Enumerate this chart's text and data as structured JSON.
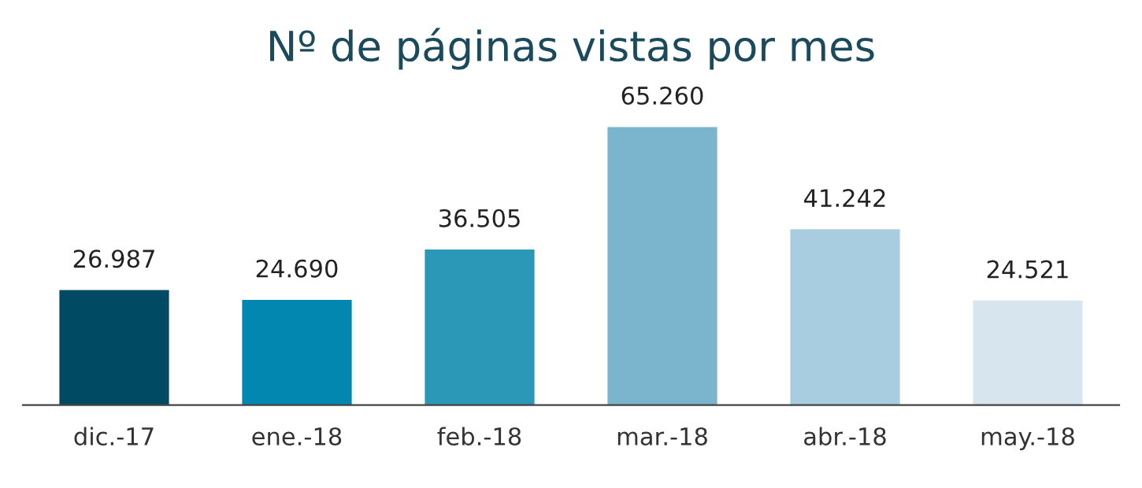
{
  "chart_data": {
    "type": "bar",
    "title": "Nº de páginas vistas por mes",
    "categories": [
      "dic.-17",
      "ene.-18",
      "feb.-18",
      "mar.-18",
      "abr.-18",
      "may.-18"
    ],
    "values": [
      26987,
      24690,
      36505,
      65260,
      41242,
      24521
    ],
    "colors": [
      "#014a64",
      "#0288b0",
      "#2b98b8",
      "#7ab4cd",
      "#a8cde0",
      "#d7e6ee"
    ],
    "value_labels": [
      "26.987",
      "24.690",
      "36.505",
      "65.260",
      "41.242",
      "24.521"
    ],
    "grid": false,
    "legend": false
  }
}
